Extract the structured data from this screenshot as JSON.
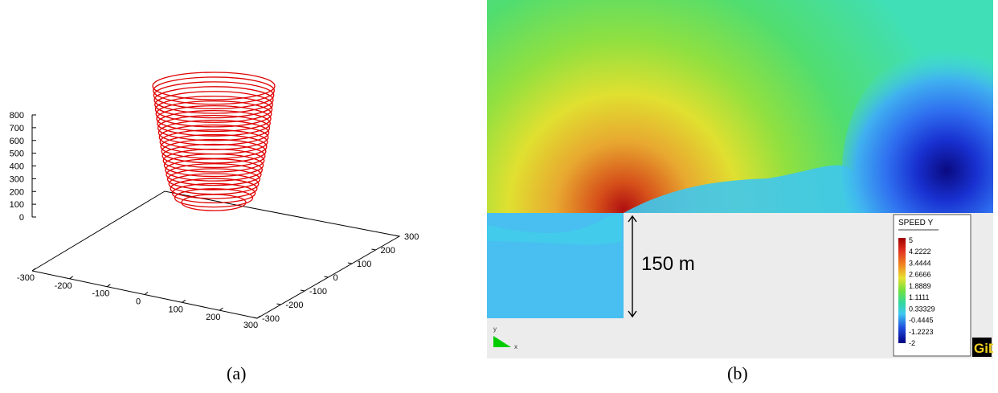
{
  "figure": {
    "caption_a": "(a)",
    "caption_b": "(b)"
  },
  "chart_data": [
    {
      "type": "line",
      "title": "",
      "z_ticks": [
        "800",
        "700",
        "600",
        "500",
        "400",
        "300",
        "200",
        "100",
        "0"
      ],
      "x_ticks": [
        "-300",
        "-200",
        "-100",
        "0",
        "100",
        "200",
        "300"
      ],
      "y_ticks": [
        "-300",
        "-200",
        "-100",
        "0",
        "100",
        "200",
        "300"
      ],
      "zlim": [
        0,
        800
      ],
      "xlim": [
        -300,
        300
      ],
      "ylim": [
        -300,
        300
      ],
      "series_color": "#e00000",
      "rings": {
        "count": 26,
        "z_bottom": 0,
        "z_top": 800
      }
    },
    {
      "type": "heatmap",
      "legend": {
        "title": "SPEED Y",
        "values": [
          "5",
          "4.2222",
          "3.4444",
          "2.6666",
          "1.8889",
          "1.1111",
          "0.33329",
          "-0.4445",
          "-1.2223",
          "-2"
        ]
      },
      "annotation": "150 m",
      "axis_y": "y",
      "axis_x": "x",
      "logo": "GiD"
    }
  ]
}
